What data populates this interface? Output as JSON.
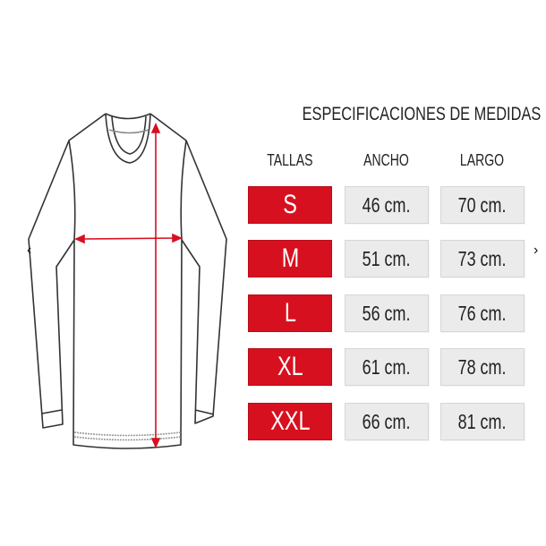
{
  "title": "ESPECIFICACIONES DE MEDIDAS",
  "headers": {
    "sizes": "TALLAS",
    "width": "ANCHO",
    "length": "LARGO"
  },
  "rows": [
    {
      "size": "S",
      "width": "46 cm.",
      "length": "70 cm."
    },
    {
      "size": "M",
      "width": "51 cm.",
      "length": "73 cm."
    },
    {
      "size": "L",
      "width": "56 cm.",
      "length": "76 cm."
    },
    {
      "size": "XL",
      "width": "61 cm.",
      "length": "78 cm."
    },
    {
      "size": "XXL",
      "width": "66 cm.",
      "length": "81 cm."
    }
  ],
  "nav": {
    "prev": "‹",
    "next": "›"
  },
  "colors": {
    "size_bg": "#d7101f",
    "value_bg": "#ebebeb",
    "measure_arrow": "#d7101f"
  },
  "icons": {
    "illustration": "long-sleeve-shirt-icon",
    "prev": "chevron-left-icon",
    "next": "chevron-right-icon"
  }
}
